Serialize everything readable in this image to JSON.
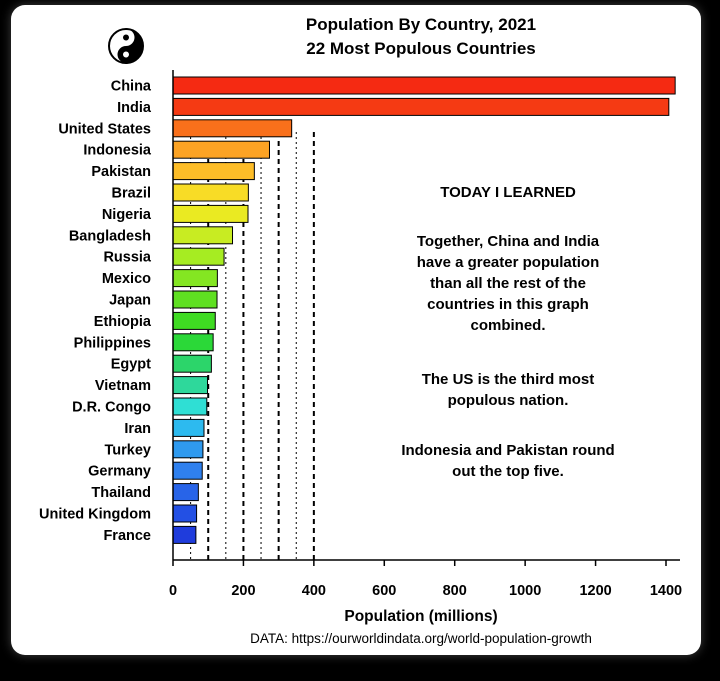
{
  "chart_data": {
    "type": "bar",
    "orientation": "horizontal",
    "title": "Population By Country, 2021",
    "subtitle": "22 Most Populous Countries",
    "xlabel": "Population (millions)",
    "ylabel": "",
    "xlim": [
      0,
      1400
    ],
    "xticks": [
      0,
      200,
      400,
      600,
      800,
      1000,
      1200,
      1400
    ],
    "reference_lines": [
      50,
      100,
      150,
      200,
      250,
      300,
      350,
      400
    ],
    "categories": [
      "China",
      "India",
      "United States",
      "Indonesia",
      "Pakistan",
      "Brazil",
      "Nigeria",
      "Bangladesh",
      "Russia",
      "Mexico",
      "Japan",
      "Ethiopia",
      "Philippines",
      "Egypt",
      "Vietnam",
      "D.R. Congo",
      "Iran",
      "Turkey",
      "Germany",
      "Thailand",
      "United Kingdom",
      "France"
    ],
    "values": [
      1426,
      1408,
      337,
      274,
      231,
      214,
      213,
      169,
      145,
      126,
      125,
      120,
      114,
      109,
      98,
      96,
      88,
      85,
      83,
      72,
      67,
      65
    ],
    "colors": [
      "#f52a12",
      "#f53a13",
      "#f9701b",
      "#fca324",
      "#fdbd28",
      "#f8dc26",
      "#eaea22",
      "#c8ec22",
      "#a6ec22",
      "#84e622",
      "#5fe021",
      "#3fdb22",
      "#2bd838",
      "#2cd56a",
      "#2ed89b",
      "#2fdfd4",
      "#2dbaef",
      "#2f9aef",
      "#2f80ee",
      "#2864e8",
      "#2350e4",
      "#1f3cdc"
    ]
  },
  "source": "DATA: https://ourworldindata.org/world-population-growth",
  "annotations": {
    "heading": "TODAY I LEARNED",
    "fact1": [
      "Together, China and India",
      "have a greater population",
      "than all the rest of the",
      "countries in this graph",
      "combined."
    ],
    "fact2": [
      "The US is the third most",
      "populous nation."
    ],
    "fact3": [
      "Indonesia and Pakistan round",
      "out the top five."
    ]
  },
  "logo_icon": "yin-yang-icon"
}
